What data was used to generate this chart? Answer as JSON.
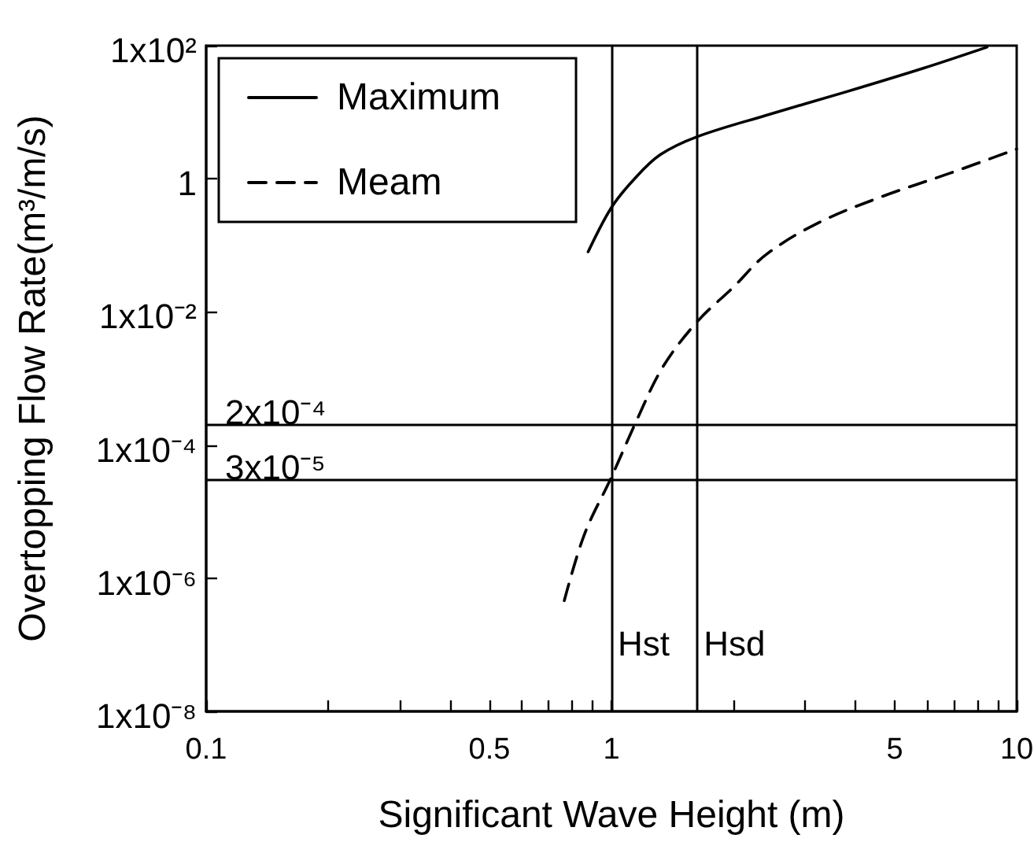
{
  "chart_data": {
    "type": "line",
    "xlabel": "Significant Wave Height (m)",
    "ylabel": "Overtopping Flow Rate(m³/m/s)",
    "log": "xy",
    "legend": "top left",
    "xlim": [
      0.1,
      10
    ],
    "xticks": [
      0.1,
      {
        "value": 0.2,
        "label": null
      },
      {
        "value": 0.3,
        "label": null
      },
      {
        "value": 0.4,
        "label": null
      },
      0.5,
      {
        "value": 0.6,
        "label": null
      },
      {
        "value": 0.7,
        "label": null
      },
      {
        "value": 0.8,
        "label": null
      },
      {
        "value": 0.9,
        "label": null
      },
      1,
      {
        "value": 2,
        "label": null
      },
      {
        "value": 3,
        "label": null
      },
      {
        "value": 4,
        "label": null
      },
      5,
      {
        "value": 6,
        "label": null
      },
      {
        "value": 7,
        "label": null
      },
      {
        "value": 8,
        "label": null
      },
      {
        "value": 9,
        "label": null
      },
      10
    ],
    "ylim": [
      1e-08,
      100
    ],
    "yticks": [
      {
        "value": 1e-08,
        "label": "1x10⁻⁸"
      },
      {
        "value": 1e-06,
        "label": "1x10⁻⁶"
      },
      {
        "value": 0.0001,
        "label": "1x10⁻⁴"
      },
      {
        "value": 0.01,
        "label": "1x10⁻²"
      },
      1,
      {
        "value": 100,
        "label": "1x10²"
      }
    ],
    "series": [
      {
        "name": "Maximum",
        "color": "#000000",
        "line_style": "solid",
        "x": [
          0.876,
          1.0,
          1.14,
          1.32,
          1.63,
          2.41,
          3.77,
          5.9,
          8.45
        ],
        "values": [
          0.08,
          0.37,
          1.0,
          2.3,
          4.3,
          9.0,
          20,
          46,
          95
        ]
      },
      {
        "name": "Meam",
        "color": "#000000",
        "line_style": "dashed",
        "x": [
          0.765,
          0.857,
          1.0,
          1.156,
          1.34,
          1.63,
          2.0,
          2.41,
          3.25,
          4.65,
          6.86,
          10
        ],
        "values": [
          4.6e-07,
          4.5e-06,
          3.3e-05,
          0.00024,
          0.0015,
          0.0072,
          0.0236,
          0.073,
          0.22,
          0.54,
          1.22,
          2.8
        ]
      }
    ],
    "ref_lines": [
      {
        "axis": "y",
        "value": 0.0002,
        "label": "2x10⁻⁴",
        "color": "#000000"
      },
      {
        "axis": "y",
        "value": 3e-05,
        "label": "3x10⁻⁵",
        "color": "#000000"
      },
      {
        "axis": "x",
        "value": 1,
        "label": "Hst",
        "color": "#000000"
      },
      {
        "axis": "x",
        "value": 1.63,
        "label": "Hsd",
        "color": "#000000"
      }
    ]
  }
}
